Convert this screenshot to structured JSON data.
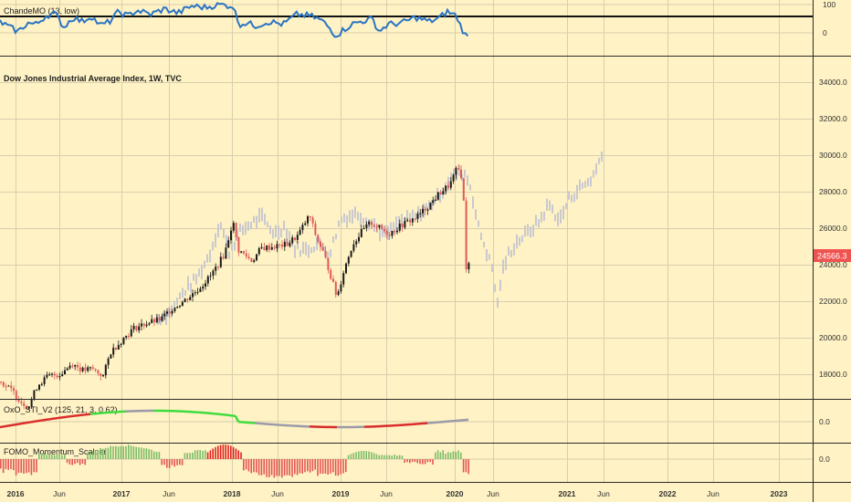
{
  "main": {
    "title": "Dow Jones Industrial Average Index, 1W, TVC",
    "price_label": "24566.3",
    "y_ticks": [
      "34000.0",
      "32000.0",
      "30000.0",
      "28000.0",
      "26000.0",
      "24000.0",
      "22000.0",
      "20000.0",
      "18000.0"
    ],
    "y_range": [
      16000,
      35500
    ],
    "last_price": 24566.3,
    "colors": {
      "bg": "#fff2c4",
      "up": "#1a1a1a",
      "down": "#e05a57",
      "ghost": "#c9c9cf",
      "price_tag": "#ef5350"
    }
  },
  "cmo_pane": {
    "title": "ChandeMO (13, low)",
    "ticks": [
      "100",
      "0"
    ],
    "level": 55,
    "color": "#2a74c4"
  },
  "sti_pane": {
    "title": "OxO_STI_V2 (125, 21, 3, 0.62)",
    "tick": "0.0",
    "colors": {
      "up": "#3ddc3d",
      "down": "#d92b2b",
      "flat": "#9a9aaa"
    }
  },
  "fomo_pane": {
    "title": "FOMO_Momentum_Scalper",
    "tick": "0.0",
    "colors": {
      "pos": "#7dbd6a",
      "neg": "#e25757",
      "strong_pos": "#e02020"
    }
  },
  "time_axis": {
    "labels": [
      {
        "t": "2016",
        "year": true
      },
      {
        "t": "Jun",
        "year": false
      },
      {
        "t": "2017",
        "year": true
      },
      {
        "t": "Jun",
        "year": false
      },
      {
        "t": "2018",
        "year": true
      },
      {
        "t": "Jun",
        "year": false
      },
      {
        "t": "2019",
        "year": true
      },
      {
        "t": "Jun",
        "year": false
      },
      {
        "t": "2020",
        "year": true
      },
      {
        "t": "Jun",
        "year": false
      },
      {
        "t": "2021",
        "year": true
      },
      {
        "t": "Jun",
        "year": false
      },
      {
        "t": "2022",
        "year": true
      },
      {
        "t": "Jun",
        "year": false
      },
      {
        "t": "2023",
        "year": true
      }
    ]
  },
  "chart_data": {
    "type": "line",
    "series": [
      {
        "name": "Dow Jones Industrial Average Index, 1W, TVC",
        "x": [
          "2016-01",
          "2016-06",
          "2017-01",
          "2017-06",
          "2018-01",
          "2018-02",
          "2018-06",
          "2018-10",
          "2018-12",
          "2019-04",
          "2019-06",
          "2019-09",
          "2020-01",
          "2020-02",
          "2020-03",
          "2020-04"
        ],
        "values": [
          17000,
          17800,
          19800,
          21400,
          26400,
          24200,
          24900,
          26500,
          22000,
          26400,
          26600,
          26900,
          28800,
          29300,
          22000,
          24566
        ]
      }
    ]
  }
}
